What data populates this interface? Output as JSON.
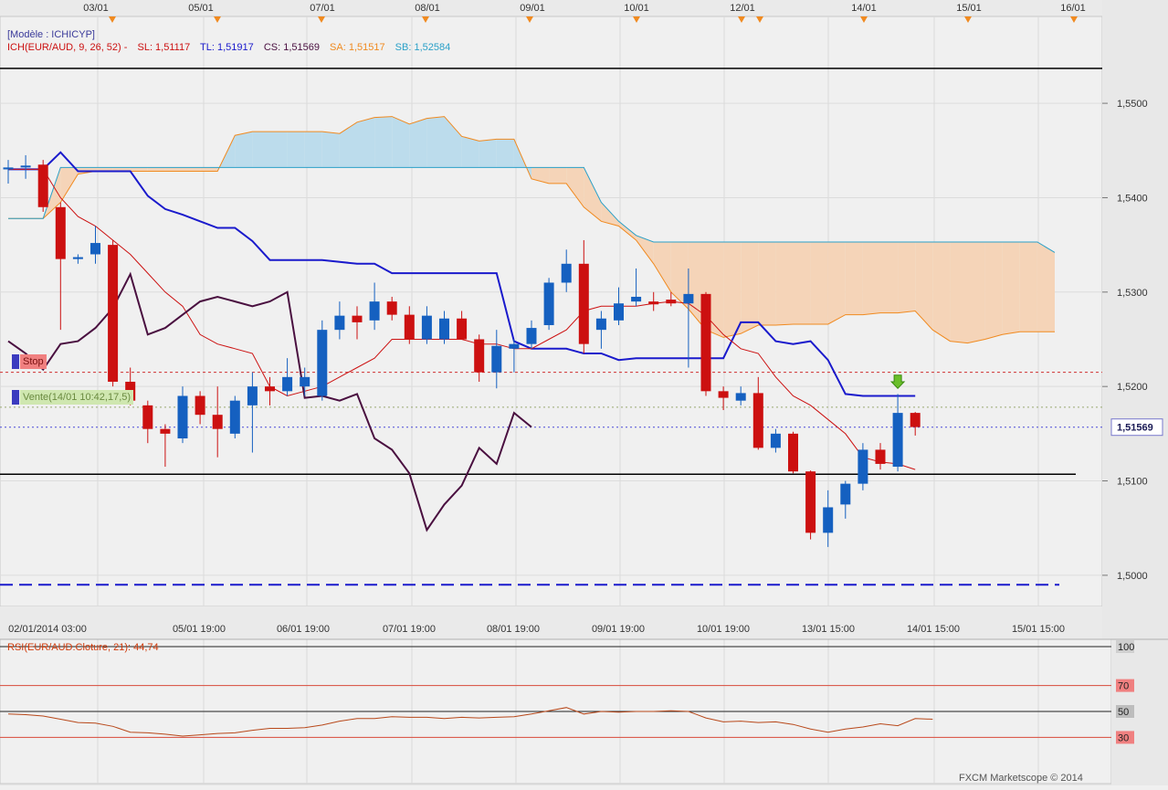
{
  "chart_data": {
    "type": "candlestick",
    "instrument": "EUR/AUD",
    "model_label": "[Modèle : ICHICYP]",
    "indicator": {
      "name": "ICH(EUR/AUD, 9, 26, 52) -",
      "sl_label": "SL: 1,51117",
      "tl_label": "TL: 1,51917",
      "cs_label": "CS: 1,51569",
      "sa_label": "SA: 1,51517",
      "sb_label": "SB: 1,52584"
    },
    "ylim": [
      1.4967,
      1.5592
    ],
    "y_ticks": [
      "1,5500",
      "1,5400",
      "1,5300",
      "1,5200",
      "1,5100",
      "1,5000"
    ],
    "y_tick_values": [
      1.55,
      1.54,
      1.53,
      1.52,
      1.51,
      1.5
    ],
    "current_price": 1.51569,
    "current_price_label": "1,51569",
    "top_dates": [
      "03/01",
      "05/01",
      "07/01",
      "08/01",
      "09/01",
      "10/01",
      "12/01",
      "14/01",
      "15/01",
      "16/01"
    ],
    "bottom_dates": [
      "02/01/2014 03:00",
      "05/01 19:00",
      "06/01 19:00",
      "07/01 19:00",
      "08/01 19:00",
      "09/01 19:00",
      "10/01 19:00",
      "13/01 15:00",
      "14/01 15:00",
      "15/01 15:00"
    ],
    "candles": [
      {
        "o": 1.543,
        "h": 1.544,
        "l": 1.5415,
        "c": 1.5432
      },
      {
        "o": 1.5432,
        "h": 1.5445,
        "l": 1.542,
        "c": 1.5434
      },
      {
        "o": 1.5435,
        "h": 1.544,
        "l": 1.5385,
        "c": 1.539
      },
      {
        "o": 1.539,
        "h": 1.5395,
        "l": 1.526,
        "c": 1.5335
      },
      {
        "o": 1.5335,
        "h": 1.534,
        "l": 1.533,
        "c": 1.5337
      },
      {
        "o": 1.534,
        "h": 1.537,
        "l": 1.533,
        "c": 1.5352
      },
      {
        "o": 1.535,
        "h": 1.5355,
        "l": 1.52,
        "c": 1.5205
      },
      {
        "o": 1.5205,
        "h": 1.522,
        "l": 1.518,
        "c": 1.5185
      },
      {
        "o": 1.518,
        "h": 1.5185,
        "l": 1.514,
        "c": 1.5155
      },
      {
        "o": 1.5155,
        "h": 1.516,
        "l": 1.5115,
        "c": 1.515
      },
      {
        "o": 1.5145,
        "h": 1.52,
        "l": 1.514,
        "c": 1.519
      },
      {
        "o": 1.519,
        "h": 1.5195,
        "l": 1.516,
        "c": 1.517
      },
      {
        "o": 1.517,
        "h": 1.52,
        "l": 1.5125,
        "c": 1.5155
      },
      {
        "o": 1.515,
        "h": 1.519,
        "l": 1.5145,
        "c": 1.5185
      },
      {
        "o": 1.518,
        "h": 1.5215,
        "l": 1.513,
        "c": 1.52
      },
      {
        "o": 1.52,
        "h": 1.521,
        "l": 1.518,
        "c": 1.5195
      },
      {
        "o": 1.5195,
        "h": 1.523,
        "l": 1.519,
        "c": 1.521
      },
      {
        "o": 1.52,
        "h": 1.522,
        "l": 1.519,
        "c": 1.521
      },
      {
        "o": 1.519,
        "h": 1.527,
        "l": 1.5185,
        "c": 1.526
      },
      {
        "o": 1.526,
        "h": 1.529,
        "l": 1.525,
        "c": 1.5275
      },
      {
        "o": 1.5275,
        "h": 1.5285,
        "l": 1.525,
        "c": 1.5268
      },
      {
        "o": 1.527,
        "h": 1.531,
        "l": 1.526,
        "c": 1.529
      },
      {
        "o": 1.529,
        "h": 1.5295,
        "l": 1.527,
        "c": 1.5276
      },
      {
        "o": 1.5276,
        "h": 1.5285,
        "l": 1.5245,
        "c": 1.525
      },
      {
        "o": 1.525,
        "h": 1.5285,
        "l": 1.5245,
        "c": 1.5275
      },
      {
        "o": 1.525,
        "h": 1.528,
        "l": 1.5245,
        "c": 1.5272
      },
      {
        "o": 1.5272,
        "h": 1.528,
        "l": 1.525,
        "c": 1.525
      },
      {
        "o": 1.525,
        "h": 1.5255,
        "l": 1.5205,
        "c": 1.5215
      },
      {
        "o": 1.5215,
        "h": 1.526,
        "l": 1.5198,
        "c": 1.5243
      },
      {
        "o": 1.524,
        "h": 1.525,
        "l": 1.5215,
        "c": 1.5245
      },
      {
        "o": 1.5245,
        "h": 1.527,
        "l": 1.524,
        "c": 1.5262
      },
      {
        "o": 1.5265,
        "h": 1.5315,
        "l": 1.526,
        "c": 1.531
      },
      {
        "o": 1.531,
        "h": 1.5345,
        "l": 1.53,
        "c": 1.533
      },
      {
        "o": 1.533,
        "h": 1.5355,
        "l": 1.5235,
        "c": 1.5245
      },
      {
        "o": 1.526,
        "h": 1.528,
        "l": 1.524,
        "c": 1.5272
      },
      {
        "o": 1.527,
        "h": 1.5305,
        "l": 1.5265,
        "c": 1.5288
      },
      {
        "o": 1.529,
        "h": 1.5325,
        "l": 1.5285,
        "c": 1.5295
      },
      {
        "o": 1.529,
        "h": 1.53,
        "l": 1.528,
        "c": 1.5287
      },
      {
        "o": 1.5292,
        "h": 1.53,
        "l": 1.5285,
        "c": 1.5288
      },
      {
        "o": 1.5288,
        "h": 1.5325,
        "l": 1.522,
        "c": 1.5298
      },
      {
        "o": 1.5298,
        "h": 1.53,
        "l": 1.519,
        "c": 1.5195
      },
      {
        "o": 1.5195,
        "h": 1.52,
        "l": 1.5175,
        "c": 1.5188
      },
      {
        "o": 1.5185,
        "h": 1.52,
        "l": 1.518,
        "c": 1.5193
      },
      {
        "o": 1.5193,
        "h": 1.521,
        "l": 1.5133,
        "c": 1.5135
      },
      {
        "o": 1.5135,
        "h": 1.5155,
        "l": 1.513,
        "c": 1.515
      },
      {
        "o": 1.515,
        "h": 1.5152,
        "l": 1.5108,
        "c": 1.511
      },
      {
        "o": 1.511,
        "h": 1.5111,
        "l": 1.5038,
        "c": 1.5045
      },
      {
        "o": 1.5045,
        "h": 1.509,
        "l": 1.503,
        "c": 1.5072
      },
      {
        "o": 1.5075,
        "h": 1.51,
        "l": 1.506,
        "c": 1.5097
      },
      {
        "o": 1.5097,
        "h": 1.514,
        "l": 1.509,
        "c": 1.5133
      },
      {
        "o": 1.5133,
        "h": 1.514,
        "l": 1.5112,
        "c": 1.5118
      },
      {
        "o": 1.5115,
        "h": 1.5192,
        "l": 1.511,
        "c": 1.5172
      },
      {
        "o": 1.5172,
        "h": 1.5173,
        "l": 1.5148,
        "c": 1.5157
      }
    ],
    "tenkan_sen": [
      1.543,
      1.543,
      1.543,
      1.54,
      1.538,
      1.537,
      1.5355,
      1.534,
      1.532,
      1.53,
      1.5285,
      1.5255,
      1.5245,
      1.524,
      1.5235,
      1.52,
      1.519,
      1.5195,
      1.52,
      1.521,
      1.522,
      1.523,
      1.525,
      1.525,
      1.525,
      1.525,
      1.525,
      1.5245,
      1.5245,
      1.524,
      1.524,
      1.525,
      1.526,
      1.528,
      1.5285,
      1.5285,
      1.5285,
      1.5288,
      1.529,
      1.5288,
      1.5275,
      1.5255,
      1.524,
      1.5235,
      1.521,
      1.519,
      1.518,
      1.5165,
      1.515,
      1.5125,
      1.512,
      1.5118,
      1.5112
    ],
    "kijun_sen": [
      1.543,
      1.543,
      1.543,
      1.5448,
      1.5428,
      1.5428,
      1.5428,
      1.5428,
      1.5402,
      1.5388,
      1.5382,
      1.5375,
      1.5368,
      1.5368,
      1.5354,
      1.5334,
      1.5334,
      1.5334,
      1.5334,
      1.5332,
      1.533,
      1.533,
      1.532,
      1.532,
      1.532,
      1.532,
      1.532,
      1.532,
      1.532,
      1.5248,
      1.524,
      1.524,
      1.524,
      1.5235,
      1.5235,
      1.5228,
      1.523,
      1.523,
      1.523,
      1.523,
      1.523,
      1.523,
      1.5268,
      1.5268,
      1.5248,
      1.5245,
      1.5248,
      1.5228,
      1.5192,
      1.519,
      1.519,
      1.519,
      1.519,
      1.519,
      1.519,
      1.519,
      1.519
    ],
    "senkou_a": [
      1.5378,
      1.5378,
      1.5378,
      1.5395,
      1.5425,
      1.5428,
      1.5428,
      1.5428,
      1.5428,
      1.5428,
      1.5428,
      1.5428,
      1.5428,
      1.5466,
      1.547,
      1.547,
      1.547,
      1.547,
      1.547,
      1.5468,
      1.548,
      1.5485,
      1.5486,
      1.5478,
      1.5484,
      1.5486,
      1.5465,
      1.546,
      1.5462,
      1.5462,
      1.542,
      1.5415,
      1.5415,
      1.539,
      1.5375,
      1.537,
      1.5355,
      1.533,
      1.53,
      1.5282,
      1.526,
      1.5252,
      1.5256,
      1.5265,
      1.5265,
      1.5266,
      1.5266,
      1.5266,
      1.5276,
      1.5276,
      1.5278,
      1.5278,
      1.528,
      1.526,
      1.5248,
      1.5246,
      1.525,
      1.5255,
      1.5258,
      1.5258,
      1.5258
    ],
    "senkou_b": [
      1.5378,
      1.5378,
      1.5378,
      1.5432,
      1.5432,
      1.5432,
      1.5432,
      1.5432,
      1.5432,
      1.5432,
      1.5432,
      1.5432,
      1.5432,
      1.5432,
      1.5432,
      1.5432,
      1.5432,
      1.5432,
      1.5432,
      1.5432,
      1.5432,
      1.5432,
      1.5432,
      1.5432,
      1.5432,
      1.5432,
      1.5432,
      1.5432,
      1.5432,
      1.5432,
      1.5432,
      1.5432,
      1.5432,
      1.5432,
      1.5395,
      1.5375,
      1.536,
      1.5353,
      1.5353,
      1.5353,
      1.5353,
      1.5353,
      1.5353,
      1.5353,
      1.5353,
      1.5353,
      1.5353,
      1.5353,
      1.5353,
      1.5353,
      1.5353,
      1.5353,
      1.5353,
      1.5353,
      1.5353,
      1.5353,
      1.5353,
      1.5353,
      1.5353,
      1.5353,
      1.5342
    ],
    "chikou_span": [
      1.5248,
      1.5235,
      1.5218,
      1.5245,
      1.5248,
      1.5262,
      1.5283,
      1.5319,
      1.5255,
      1.5262,
      1.5276,
      1.529,
      1.5295,
      1.529,
      1.5285,
      1.529,
      1.53,
      1.5188,
      1.519,
      1.5185,
      1.5192,
      1.5145,
      1.5133,
      1.5108,
      1.5048,
      1.5075,
      1.5095,
      1.5135,
      1.5118,
      1.5172,
      1.5157
    ],
    "horizontal_levels": [
      {
        "value": 1.5537,
        "color": "#000000",
        "style": "solid"
      },
      {
        "value": 1.5107,
        "color": "#000000",
        "style": "solid"
      },
      {
        "value": 1.499,
        "color": "#1a1acc",
        "style": "dash-long"
      },
      {
        "value": 1.5215,
        "color": "#d03030",
        "style": "dash"
      },
      {
        "value": 1.5178,
        "color": "#9aa870",
        "style": "dot"
      },
      {
        "value": 1.51569,
        "color": "#4a4ad8",
        "style": "dot"
      }
    ],
    "markers": {
      "stop_label": "Stop",
      "stop_value": 1.5225,
      "sell_label": "Vente(14/01 10:42,17,5)",
      "sell_value": 1.5197
    },
    "rsi": {
      "label": "RSI(EUR/AUD.Cloture, 21): 44,74",
      "ylim": [
        0,
        100
      ],
      "levels": [
        "100",
        "70",
        "50",
        "30"
      ],
      "level_values": [
        100,
        70,
        50,
        30
      ],
      "values": [
        48.0,
        47.5,
        46.5,
        44.0,
        41.5,
        41.0,
        38.5,
        34.0,
        33.5,
        32.5,
        31.0,
        32.0,
        33.0,
        33.5,
        35.5,
        37.0,
        37.0,
        37.5,
        39.5,
        42.5,
        44.5,
        44.5,
        46.0,
        45.5,
        45.5,
        44.5,
        45.5,
        45.0,
        45.5,
        46.0,
        48.0,
        50.5,
        53.0,
        48.0,
        50.0,
        49.5,
        50.0,
        50.0,
        50.5,
        50.0,
        45.0,
        42.0,
        42.5,
        41.5,
        42.0,
        40.0,
        36.5,
        34.0,
        36.5,
        38.0,
        40.5,
        39.0,
        44.5,
        44.0
      ]
    },
    "footer": "FXCM Marketscope © 2014"
  }
}
